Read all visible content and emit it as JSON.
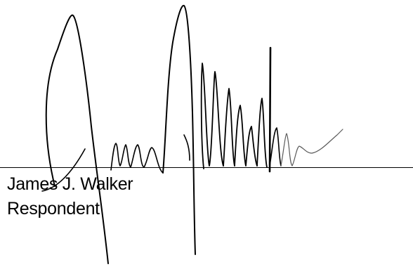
{
  "signature": {
    "signer_name": "James J. Walker",
    "signer_role": "Respondent",
    "signature_image": "handwritten-signature",
    "ink_color": "#000000",
    "accent_stroke_color": "#5a5a5a"
  }
}
